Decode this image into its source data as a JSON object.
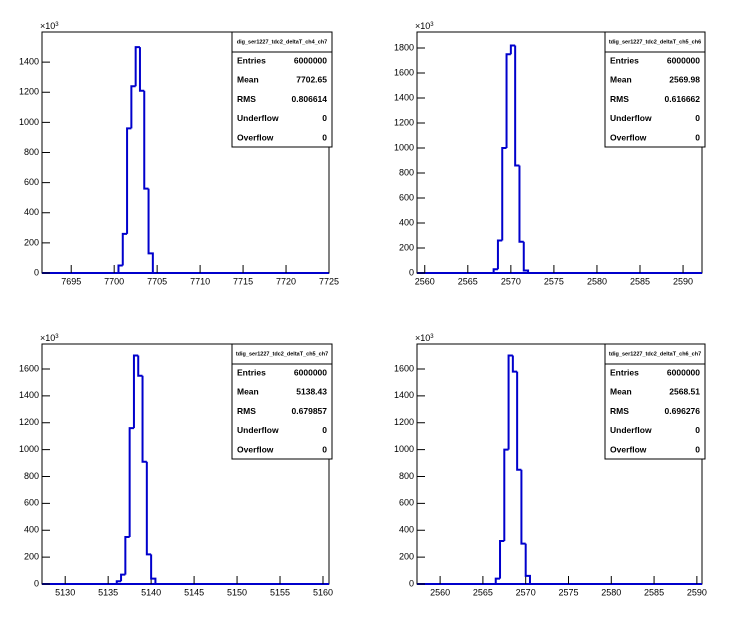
{
  "chart_data": [
    {
      "type": "histogram",
      "color": "#0000cc",
      "y_scale_label": "×10",
      "y_scale_exponent": 3,
      "xlim": [
        7691.6,
        7725
      ],
      "xticks": [
        7695,
        7700,
        7705,
        7710,
        7715,
        7720,
        7725
      ],
      "ylim": [
        0,
        1600
      ],
      "yticks": [
        0,
        200,
        400,
        600,
        800,
        1000,
        1200,
        1400
      ],
      "bins": [
        7700.5,
        7701,
        7701.5,
        7702,
        7702.5,
        7703,
        7703.5,
        7704,
        7704.5
      ],
      "values": [
        50,
        260,
        960,
        1240,
        1500,
        1210,
        560,
        130
      ],
      "stats": {
        "title": "dig_ser1227_tdc2_deltaT_ch4_ch7",
        "labels": [
          "Entries",
          "Mean",
          "RMS",
          "Underflow",
          "Overflow"
        ],
        "values": [
          6000000,
          7702.65,
          0.806614,
          0,
          0
        ]
      }
    },
    {
      "type": "histogram",
      "color": "#0000cc",
      "y_scale_label": "×10",
      "y_scale_exponent": 3,
      "xlim": [
        2559.1,
        2592.2
      ],
      "xticks": [
        2560,
        2565,
        2570,
        2575,
        2580,
        2585,
        2590
      ],
      "ylim": [
        0,
        1928
      ],
      "yticks": [
        0,
        200,
        400,
        600,
        800,
        1000,
        1200,
        1400,
        1600,
        1800
      ],
      "bins": [
        2568,
        2568.5,
        2569,
        2569.5,
        2570,
        2570.5,
        2571,
        2571.5,
        2572
      ],
      "values": [
        30,
        260,
        1000,
        1750,
        1820,
        860,
        250,
        20
      ],
      "stats": {
        "title": "tdig_ser1227_tdc2_deltaT_ch5_ch6",
        "labels": [
          "Entries",
          "Mean",
          "RMS",
          "Underflow",
          "Overflow"
        ],
        "values": [
          6000000,
          2569.98,
          0.616662,
          0,
          0
        ]
      }
    },
    {
      "type": "histogram",
      "color": "#0000cc",
      "y_scale_label": "×10",
      "y_scale_exponent": 3,
      "xlim": [
        5127.3,
        5160.7
      ],
      "xticks": [
        5130,
        5135,
        5140,
        5145,
        5150,
        5155,
        5160
      ],
      "ylim": [
        0,
        1786
      ],
      "yticks": [
        0,
        200,
        400,
        600,
        800,
        1000,
        1200,
        1400,
        1600
      ],
      "bins": [
        5136,
        5136.5,
        5137,
        5137.5,
        5138,
        5138.5,
        5139,
        5139.5,
        5140,
        5140.5
      ],
      "values": [
        20,
        70,
        350,
        1160,
        1700,
        1550,
        910,
        220,
        40
      ],
      "stats": {
        "title": "tdig_ser1227_tdc2_deltaT_ch5_ch7",
        "labels": [
          "Entries",
          "Mean",
          "RMS",
          "Underflow",
          "Overflow"
        ],
        "values": [
          6000000,
          5138.43,
          0.679857,
          0,
          0
        ]
      }
    },
    {
      "type": "histogram",
      "color": "#0000cc",
      "y_scale_label": "×10",
      "y_scale_exponent": 3,
      "xlim": [
        2557.3,
        2590.6
      ],
      "xticks": [
        2560,
        2565,
        2570,
        2575,
        2580,
        2585,
        2590
      ],
      "ylim": [
        0,
        1786
      ],
      "yticks": [
        0,
        200,
        400,
        600,
        800,
        1000,
        1200,
        1400,
        1600
      ],
      "bins": [
        2566.5,
        2567,
        2567.5,
        2568,
        2568.5,
        2569,
        2569.5,
        2570,
        2570.5
      ],
      "values": [
        40,
        320,
        1000,
        1700,
        1580,
        850,
        300,
        60
      ],
      "stats": {
        "title": "tdig_ser1227_tdc2_deltaT_ch6_ch7",
        "labels": [
          "Entries",
          "Mean",
          "RMS",
          "Underflow",
          "Overflow"
        ],
        "values": [
          6000000,
          2568.51,
          0.696276,
          0,
          0
        ]
      }
    }
  ]
}
